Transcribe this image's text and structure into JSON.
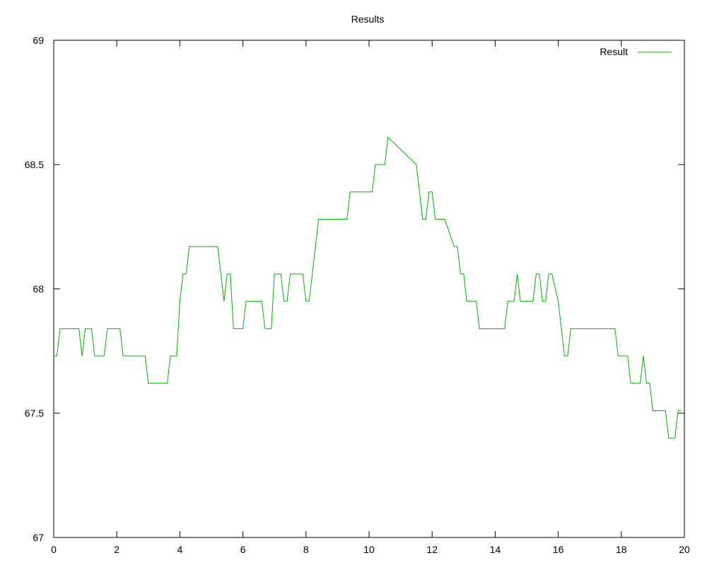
{
  "chart_data": {
    "type": "line",
    "title": "Results",
    "xlabel": "",
    "ylabel": "",
    "xlim": [
      0,
      20
    ],
    "ylim": [
      67,
      69
    ],
    "x_ticks": [
      0,
      2,
      4,
      6,
      8,
      10,
      12,
      14,
      16,
      18,
      20
    ],
    "x_tick_labels": [
      "0",
      "2",
      "4",
      "6",
      "8",
      "10",
      "12",
      "14",
      "16",
      "18",
      "20"
    ],
    "y_ticks": [
      67,
      67.5,
      68,
      68.5,
      69
    ],
    "y_tick_labels": [
      "67",
      "67.5",
      "68",
      "68.5",
      "69"
    ],
    "grid": false,
    "legend_position": "top-right",
    "series": [
      {
        "name": "Result",
        "color": "#00b000",
        "x": [
          0.0,
          0.1,
          0.2,
          0.8,
          0.9,
          1.0,
          1.2,
          1.3,
          1.6,
          1.7,
          2.1,
          2.2,
          2.9,
          3.0,
          3.6,
          3.7,
          3.8,
          3.9,
          4.0,
          4.1,
          4.2,
          4.3,
          5.2,
          5.3,
          5.4,
          5.5,
          5.6,
          5.7,
          6.0,
          6.1,
          6.6,
          6.7,
          6.9,
          7.0,
          7.2,
          7.3,
          7.4,
          7.5,
          7.9,
          8.0,
          8.1,
          8.2,
          8.3,
          8.4,
          8.5,
          9.3,
          9.4,
          10.1,
          10.2,
          10.4,
          10.5,
          10.6,
          11.5,
          11.6,
          11.7,
          11.8,
          11.9,
          12.0,
          12.1,
          12.2,
          12.4,
          12.7,
          12.8,
          12.9,
          13.0,
          13.1,
          13.2,
          13.3,
          13.4,
          13.5,
          13.6,
          13.7,
          13.8,
          14.3,
          14.4,
          14.6,
          14.7,
          14.8,
          15.2,
          15.3,
          15.4,
          15.5,
          15.6,
          15.7,
          15.8,
          16.0,
          16.1,
          16.2,
          16.3,
          16.4,
          16.5,
          16.6,
          17.8,
          17.9,
          18.2,
          18.3,
          18.6,
          18.7,
          18.8,
          18.9,
          19.0,
          19.4,
          19.5,
          19.7,
          19.8,
          19.9
        ],
        "values": [
          67.73,
          67.73,
          67.84,
          67.84,
          67.73,
          67.84,
          67.84,
          67.73,
          67.73,
          67.84,
          67.84,
          67.73,
          67.73,
          67.62,
          67.62,
          67.73,
          67.73,
          67.73,
          67.95,
          68.06,
          68.06,
          68.17,
          68.17,
          68.06,
          67.95,
          68.06,
          68.06,
          67.84,
          67.84,
          67.95,
          67.95,
          67.84,
          67.84,
          68.06,
          68.06,
          67.95,
          67.95,
          68.06,
          68.06,
          67.95,
          67.95,
          68.06,
          68.17,
          68.28,
          68.28,
          68.28,
          68.39,
          68.39,
          68.5,
          68.5,
          68.5,
          68.61,
          68.5,
          68.39,
          68.28,
          68.28,
          68.39,
          68.39,
          68.28,
          68.28,
          68.28,
          68.17,
          68.17,
          68.06,
          68.06,
          67.95,
          67.95,
          67.95,
          67.95,
          67.84,
          67.84,
          67.84,
          67.84,
          67.84,
          67.95,
          67.95,
          68.06,
          67.95,
          67.95,
          68.06,
          68.06,
          67.95,
          67.95,
          68.06,
          68.06,
          67.95,
          67.84,
          67.73,
          67.73,
          67.84,
          67.84,
          67.84,
          67.84,
          67.73,
          67.73,
          67.62,
          67.62,
          67.73,
          67.62,
          67.62,
          67.51,
          67.51,
          67.4,
          67.4,
          67.51,
          67.51
        ]
      }
    ]
  }
}
